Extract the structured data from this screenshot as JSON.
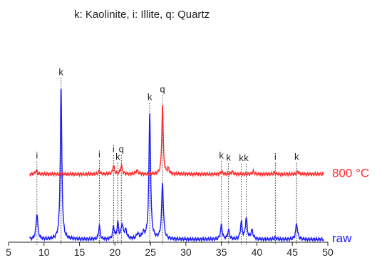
{
  "chart_data": {
    "type": "line",
    "title": "k: Kaolinite, i: Illite, q: Quartz",
    "xlabel": "",
    "ylabel": "",
    "xlim": [
      5,
      50
    ],
    "xticks": [
      5,
      10,
      15,
      20,
      25,
      30,
      35,
      40,
      45,
      50
    ],
    "grid": false,
    "legend": "inline labels at right end of each trace",
    "series": [
      {
        "name": "raw",
        "color": "#1a1aff",
        "baseline": 0.0,
        "peaks": [
          {
            "x": 9.0,
            "h": 0.15,
            "w": 0.15
          },
          {
            "x": 12.4,
            "h": 0.88,
            "w": 0.13
          },
          {
            "x": 17.8,
            "h": 0.08,
            "w": 0.12
          },
          {
            "x": 19.8,
            "h": 0.07,
            "w": 0.14
          },
          {
            "x": 20.4,
            "h": 0.09,
            "w": 0.14
          },
          {
            "x": 21.0,
            "h": 0.08,
            "w": 0.16
          },
          {
            "x": 21.5,
            "h": 0.05,
            "w": 0.2
          },
          {
            "x": 23.2,
            "h": 0.03,
            "w": 0.2
          },
          {
            "x": 24.0,
            "h": 0.03,
            "w": 0.2
          },
          {
            "x": 24.9,
            "h": 0.73,
            "w": 0.14
          },
          {
            "x": 26.7,
            "h": 0.32,
            "w": 0.15
          },
          {
            "x": 35.0,
            "h": 0.08,
            "w": 0.15
          },
          {
            "x": 36.0,
            "h": 0.05,
            "w": 0.15
          },
          {
            "x": 37.8,
            "h": 0.1,
            "w": 0.14
          },
          {
            "x": 38.5,
            "h": 0.12,
            "w": 0.15
          },
          {
            "x": 39.3,
            "h": 0.05,
            "w": 0.18
          },
          {
            "x": 42.6,
            "h": 0.01,
            "w": 0.15
          },
          {
            "x": 45.6,
            "h": 0.09,
            "w": 0.16
          }
        ]
      },
      {
        "name": "800 °C",
        "color": "#ff2a2a",
        "baseline": 0.38,
        "peaks": [
          {
            "x": 8.9,
            "h": 0.02,
            "w": 0.15
          },
          {
            "x": 17.8,
            "h": 0.02,
            "w": 0.14
          },
          {
            "x": 19.8,
            "h": 0.05,
            "w": 0.14
          },
          {
            "x": 20.9,
            "h": 0.05,
            "w": 0.15
          },
          {
            "x": 23.1,
            "h": 0.02,
            "w": 0.2
          },
          {
            "x": 26.7,
            "h": 0.4,
            "w": 0.12
          },
          {
            "x": 27.5,
            "h": 0.03,
            "w": 0.15
          },
          {
            "x": 35.0,
            "h": 0.015,
            "w": 0.15
          },
          {
            "x": 36.5,
            "h": 0.015,
            "w": 0.15
          },
          {
            "x": 39.5,
            "h": 0.015,
            "w": 0.15
          },
          {
            "x": 42.5,
            "h": 0.01,
            "w": 0.15
          },
          {
            "x": 45.8,
            "h": 0.015,
            "w": 0.15
          }
        ]
      }
    ],
    "annotations": [
      {
        "text": "i",
        "x": 9.0
      },
      {
        "text": "k",
        "x": 12.4
      },
      {
        "text": "i",
        "x": 17.8
      },
      {
        "text": "i",
        "x": 19.8
      },
      {
        "text": "k",
        "x": 20.4
      },
      {
        "text": "q",
        "x": 20.9
      },
      {
        "text": "k",
        "x": 24.9
      },
      {
        "text": "q",
        "x": 26.7
      },
      {
        "text": "k",
        "x": 35.0
      },
      {
        "text": "k",
        "x": 36.0
      },
      {
        "text": "k",
        "x": 37.8
      },
      {
        "text": "k",
        "x": 38.5
      },
      {
        "text": "i",
        "x": 42.6
      },
      {
        "text": "k",
        "x": 45.6
      }
    ]
  }
}
